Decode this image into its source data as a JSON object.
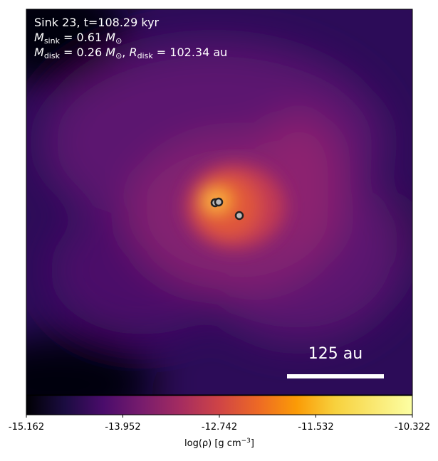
{
  "chart_data": {
    "type": "density-map",
    "annotation_lines": [
      {
        "text": "Sink 23, t=108.29 kyr"
      },
      {
        "symbol": "M",
        "subscript": "sink",
        "value": " = 0.61 ",
        "unit": "M",
        "unit_subscript": "⊙"
      },
      {
        "symbol": "M",
        "subscript": "disk",
        "value": " = 0.26 ",
        "unit": "M",
        "unit_subscript": "⊙",
        "separator": ", ",
        "symbol2": "R",
        "subscript2": "disk",
        "value2": " = 102.34 au"
      }
    ],
    "scale_bar_label": "125 au",
    "colorbar": {
      "clim": [
        -15.162,
        -10.322
      ],
      "ticks": [
        -15.162,
        -13.952,
        -12.742,
        -11.532,
        -10.322
      ],
      "label": {
        "text": "log(ρ) [g cm",
        "superscript": "−3",
        "closing": "]"
      },
      "colormap": "inferno"
    }
  }
}
